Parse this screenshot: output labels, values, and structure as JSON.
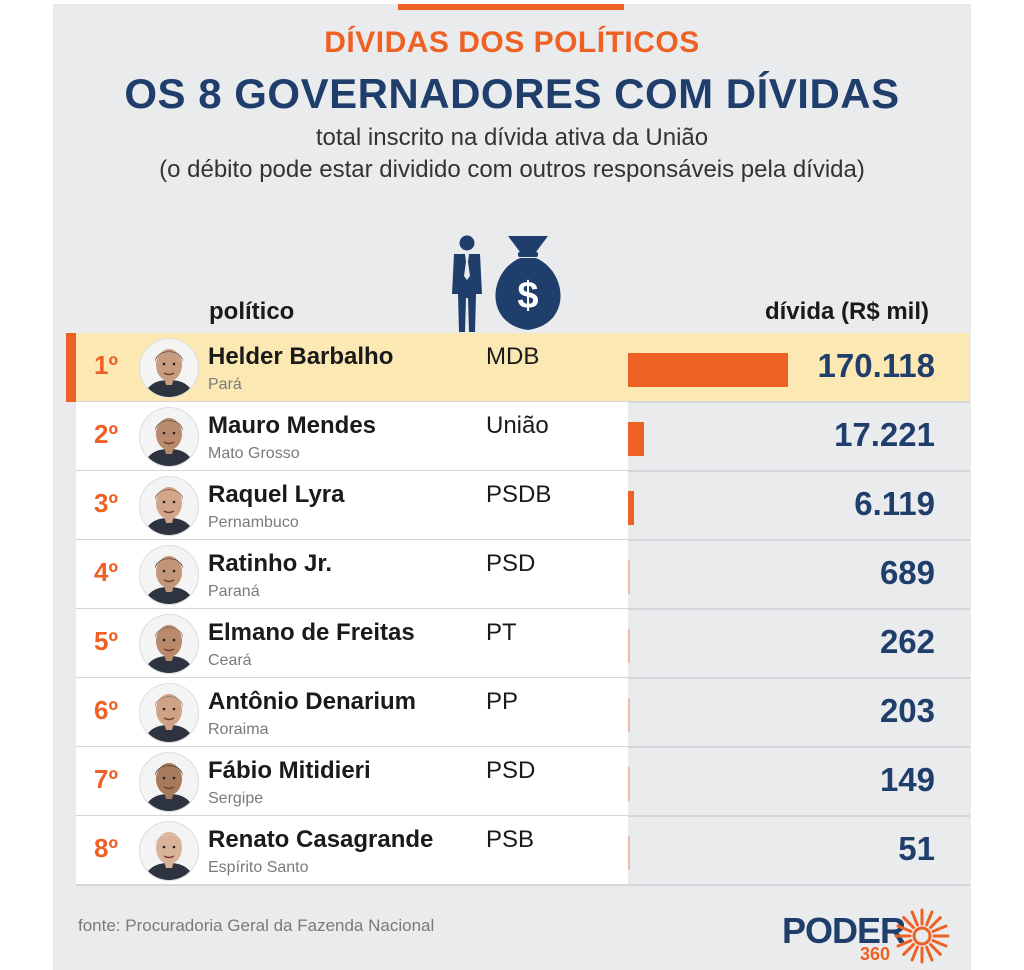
{
  "header": {
    "kicker": "DÍVIDAS DOS POLÍTICOS",
    "headline": "OS 8 GOVERNADORES COM DÍVIDAS",
    "subtitle_line1": "total inscrito na dívida ativa da União",
    "subtitle_line2": "(o débito pode estar dividido com outros responsáveis pela dívida)"
  },
  "columns": {
    "politico": "político",
    "divida": "dívida (R$ mil)"
  },
  "icons": {
    "hero": "person-money-bag-icon",
    "dollar_sign": "$"
  },
  "colors": {
    "accent": "#ee6125",
    "navy": "#1f3e6c",
    "highlight": "#fbe8b2"
  },
  "chart_data": {
    "type": "bar",
    "orientation": "horizontal",
    "ylabel": "dívida (R$ mil)",
    "categories": [
      "Helder Barbalho",
      "Mauro Mendes",
      "Raquel Lyra",
      "Ratinho Jr.",
      "Elmano de Freitas",
      "Antônio Denarium",
      "Fábio Mitidieri",
      "Renato Casagrande"
    ],
    "values": [
      170118,
      17221,
      6119,
      689,
      262,
      203,
      149,
      51
    ],
    "value_labels": [
      "170.118",
      "17.221",
      "6.119",
      "689",
      "262",
      "203",
      "149",
      "51"
    ],
    "xlim": [
      0,
      170118
    ],
    "rows": [
      {
        "rank": "1º",
        "name": "Helder Barbalho",
        "state": "Pará",
        "party": "MDB",
        "value": 170118,
        "label": "170.118",
        "highlight": true
      },
      {
        "rank": "2º",
        "name": "Mauro Mendes",
        "state": "Mato Grosso",
        "party": "União",
        "value": 17221,
        "label": "17.221",
        "highlight": false
      },
      {
        "rank": "3º",
        "name": "Raquel Lyra",
        "state": "Pernambuco",
        "party": "PSDB",
        "value": 6119,
        "label": "6.119",
        "highlight": false
      },
      {
        "rank": "4º",
        "name": "Ratinho Jr.",
        "state": "Paraná",
        "party": "PSD",
        "value": 689,
        "label": "689",
        "highlight": false
      },
      {
        "rank": "5º",
        "name": "Elmano de Freitas",
        "state": "Ceará",
        "party": "PT",
        "value": 262,
        "label": "262",
        "highlight": false
      },
      {
        "rank": "6º",
        "name": "Antônio Denarium",
        "state": "Roraima",
        "party": "PP",
        "value": 203,
        "label": "203",
        "highlight": false
      },
      {
        "rank": "7º",
        "name": "Fábio Mitidieri",
        "state": "Sergipe",
        "party": "PSD",
        "value": 149,
        "label": "149",
        "highlight": false
      },
      {
        "rank": "8º",
        "name": "Renato Casagrande",
        "state": "Espírito Santo",
        "party": "PSB",
        "value": 51,
        "label": "51",
        "highlight": false
      }
    ]
  },
  "footer": {
    "source": "fonte: Procuradoria Geral da Fazenda Nacional",
    "brand_word": "PODER",
    "brand_number": "360"
  }
}
